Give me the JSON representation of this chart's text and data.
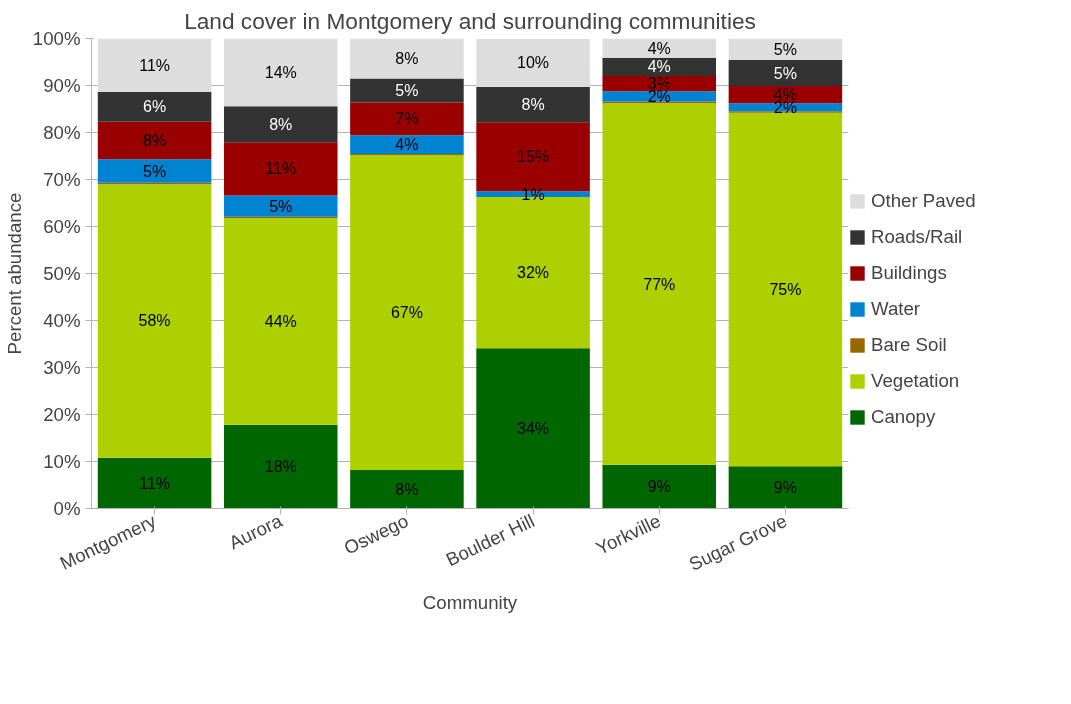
{
  "chart_data": {
    "type": "bar",
    "stacked": true,
    "title": "Land cover in Montgomery and surrounding communities",
    "xlabel": "Community",
    "ylabel": "Percent abundance",
    "categories": [
      "Montgomery",
      "Aurora",
      "Oswego",
      "Boulder Hill",
      "Yorkville",
      "Sugar Grove"
    ],
    "ylim": [
      0,
      100
    ],
    "yticks": [
      {
        "value": 0,
        "label": "0%"
      },
      {
        "value": 10,
        "label": "10%"
      },
      {
        "value": 20,
        "label": "20%"
      },
      {
        "value": 30,
        "label": "30%"
      },
      {
        "value": 40,
        "label": "40%"
      },
      {
        "value": 50,
        "label": "50%"
      },
      {
        "value": 60,
        "label": "60%"
      },
      {
        "value": 70,
        "label": "70%"
      },
      {
        "value": 80,
        "label": "80%"
      },
      {
        "value": 90,
        "label": "90%"
      },
      {
        "value": 100,
        "label": "100%"
      }
    ],
    "grid": "y",
    "legend": "right",
    "series": [
      {
        "name": "Canopy",
        "color": "#006600",
        "values": [
          10.8,
          17.8,
          8.2,
          34.1,
          9.3,
          9.0
        ],
        "value_labels": [
          "11%",
          "18%",
          "8%",
          "34%",
          "9%",
          "9%"
        ]
      },
      {
        "name": "Vegetation",
        "color": "#aed000",
        "values": [
          58.2,
          44.0,
          67.0,
          32.2,
          76.9,
          75.2
        ],
        "value_labels": [
          "58%",
          "44%",
          "67%",
          "32%",
          "77%",
          "75%"
        ]
      },
      {
        "name": "Bare Soil",
        "color": "#996600",
        "values": [
          0.3,
          0.3,
          0.2,
          null,
          0.4,
          0.3
        ],
        "value_labels": [
          null,
          null,
          null,
          null,
          null,
          null
        ]
      },
      {
        "name": "Water",
        "color": "#0084d1",
        "values": [
          5.0,
          4.5,
          4.0,
          1.2,
          2.2,
          1.7
        ],
        "value_labels": [
          "5%",
          "5%",
          "4%",
          "1%",
          "2%",
          "2%"
        ]
      },
      {
        "name": "Buildings",
        "color": "#990000",
        "values": [
          8.0,
          11.3,
          7.0,
          14.7,
          3.2,
          3.7
        ],
        "value_labels": [
          "8%",
          "11%",
          "7%",
          "15%",
          "3%",
          "4%"
        ]
      },
      {
        "name": "Roads/Rail",
        "color": "#333333",
        "values": [
          6.3,
          7.7,
          5.1,
          7.5,
          3.9,
          5.5
        ],
        "value_labels": [
          "6%",
          "8%",
          "5%",
          "8%",
          "4%",
          "5%"
        ]
      },
      {
        "name": "Other Paved",
        "color": "#dddddd",
        "values": [
          11.4,
          14.5,
          8.5,
          10.2,
          4.1,
          4.6
        ],
        "value_labels": [
          "11%",
          "14%",
          "8%",
          "10%",
          "4%",
          "5%"
        ]
      }
    ]
  }
}
